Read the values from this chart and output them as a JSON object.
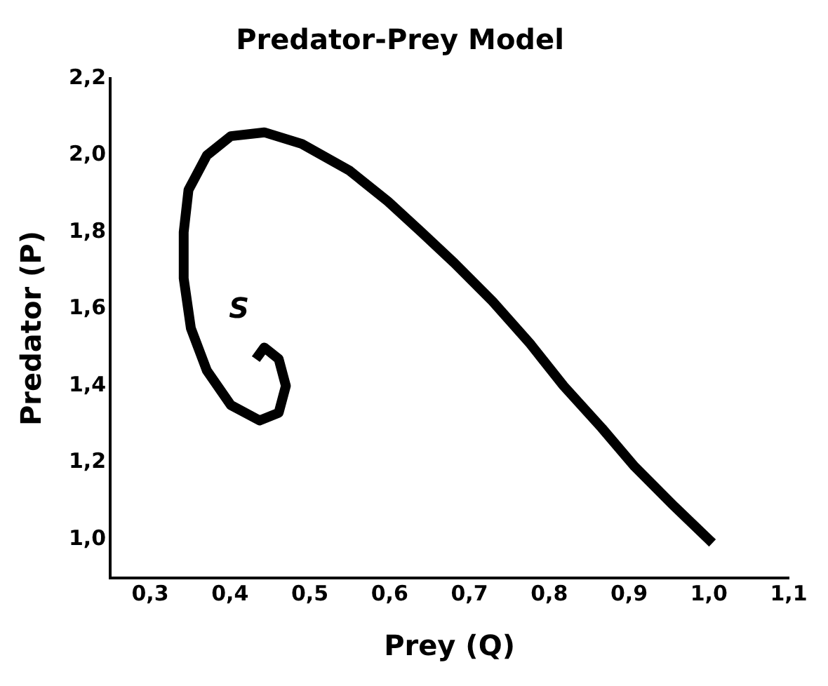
{
  "chart_data": {
    "type": "line",
    "title": "Predator-Prey Model",
    "xlabel": "Prey (Q)",
    "ylabel": "Predator (P)",
    "xlim": [
      0.25,
      1.1
    ],
    "ylim": [
      0.9,
      2.2
    ],
    "xticks": [
      {
        "value": 0.3,
        "label": "0,3"
      },
      {
        "value": 0.4,
        "label": "0,4"
      },
      {
        "value": 0.5,
        "label": "0,5"
      },
      {
        "value": 0.6,
        "label": "0,6"
      },
      {
        "value": 0.7,
        "label": "0,7"
      },
      {
        "value": 0.8,
        "label": "0,8"
      },
      {
        "value": 0.9,
        "label": "0,9"
      },
      {
        "value": 1.0,
        "label": "1,0"
      },
      {
        "value": 1.1,
        "label": "1,1"
      }
    ],
    "yticks": [
      {
        "value": 1.0,
        "label": "1,0"
      },
      {
        "value": 1.2,
        "label": "1,2"
      },
      {
        "value": 1.4,
        "label": "1,4"
      },
      {
        "value": 1.6,
        "label": "1,6"
      },
      {
        "value": 1.8,
        "label": "1,8"
      },
      {
        "value": 2.0,
        "label": "2,0"
      },
      {
        "value": 2.2,
        "label": "2,2"
      }
    ],
    "grid": false,
    "legend": false,
    "marker": "none",
    "line_style": "solid",
    "series": [
      {
        "color": "#000000",
        "x": [
          1.0,
          0.955,
          0.907,
          0.866,
          0.818,
          0.776,
          0.729,
          0.681,
          0.64,
          0.598,
          0.55,
          0.49,
          0.443,
          0.401,
          0.371,
          0.348,
          0.342,
          0.342,
          0.351,
          0.371,
          0.401,
          0.437,
          0.461,
          0.47,
          0.461,
          0.443,
          0.436
        ],
        "values": [
          1.0,
          1.09,
          1.19,
          1.29,
          1.4,
          1.51,
          1.62,
          1.72,
          1.8,
          1.88,
          1.96,
          2.03,
          2.06,
          2.05,
          2.0,
          1.91,
          1.8,
          1.68,
          1.55,
          1.44,
          1.35,
          1.31,
          1.33,
          1.4,
          1.47,
          1.5,
          1.48
        ]
      }
    ],
    "annotations": [
      "S"
    ]
  }
}
